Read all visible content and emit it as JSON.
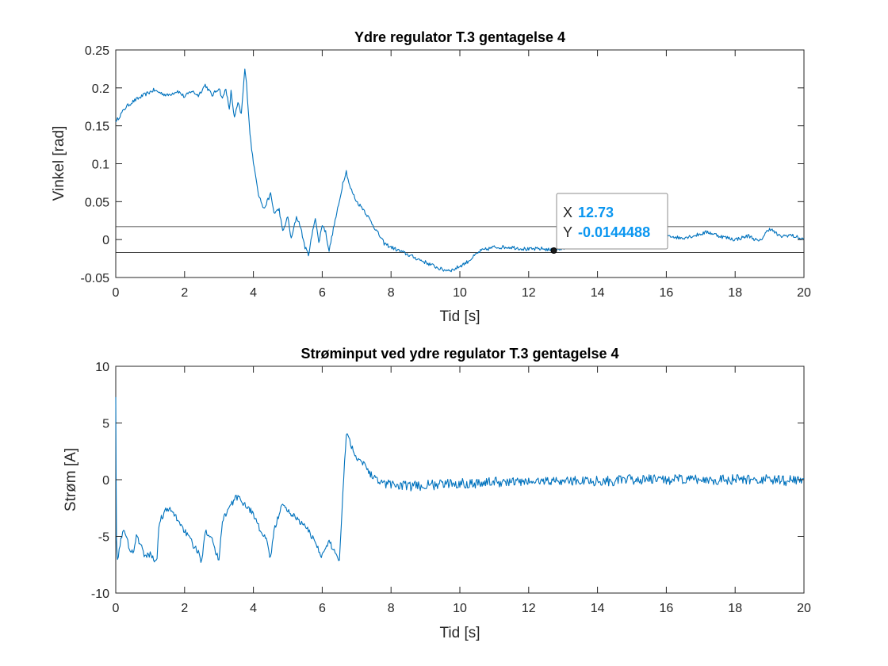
{
  "colors": {
    "series": "#0072BD",
    "datatip_value": "#0A96F0",
    "axes": "#262626"
  },
  "chart_data": [
    {
      "type": "line",
      "title": "Ydre regulator T.3 gentagelse 4",
      "xlabel": "Tid [s]",
      "ylabel": "Vinkel [rad]",
      "xlim": [
        0,
        20
      ],
      "ylim": [
        -0.05,
        0.25
      ],
      "xticks": [
        0,
        2,
        4,
        6,
        8,
        10,
        12,
        14,
        16,
        18,
        20
      ],
      "yticks": [
        -0.05,
        0,
        0.05,
        0.1,
        0.15,
        0.2,
        0.25
      ],
      "xtick_labels": [
        "0",
        "2",
        "4",
        "6",
        "8",
        "10",
        "12",
        "14",
        "16",
        "18",
        "20"
      ],
      "ytick_labels": [
        "-0.05",
        "0",
        "0.05",
        "0.1",
        "0.15",
        "0.2",
        "0.25"
      ],
      "grid": false,
      "reference_lines": [
        0.017,
        -0.017
      ],
      "series": [
        {
          "x": [
            0,
            0.1,
            0.3,
            0.5,
            0.8,
            1.1,
            1.5,
            1.8,
            2.0,
            2.2,
            2.4,
            2.6,
            2.8,
            3.0,
            3.1,
            3.2,
            3.3,
            3.35,
            3.45,
            3.55,
            3.65,
            3.75,
            3.8,
            3.9,
            4.0,
            4.05,
            4.15,
            4.3,
            4.5,
            4.6,
            4.75,
            4.85,
            5.0,
            5.1,
            5.25,
            5.35,
            5.5,
            5.6,
            5.7,
            5.8,
            5.9,
            6.0,
            6.1,
            6.2,
            6.35,
            6.5,
            6.6,
            6.7,
            6.8,
            6.9,
            7.0,
            7.2,
            7.4,
            7.6,
            7.8,
            8.0,
            8.5,
            9.0,
            9.5,
            9.8,
            10.2,
            10.6,
            11.0,
            11.5,
            12.0,
            12.4,
            12.73,
            13.0,
            13.4,
            13.8,
            14.2,
            14.6,
            15.0,
            15.4,
            15.8,
            16.0,
            16.4,
            16.8,
            17.2,
            17.6,
            18.0,
            18.4,
            18.7,
            19.0,
            19.3,
            19.6,
            20.0
          ],
          "y": [
            0.155,
            0.162,
            0.175,
            0.182,
            0.19,
            0.197,
            0.19,
            0.196,
            0.188,
            0.196,
            0.19,
            0.204,
            0.19,
            0.2,
            0.185,
            0.2,
            0.17,
            0.195,
            0.16,
            0.18,
            0.165,
            0.225,
            0.205,
            0.14,
            0.1,
            0.09,
            0.06,
            0.04,
            0.06,
            0.035,
            0.04,
            0.01,
            0.03,
            0.0,
            0.03,
            0.02,
            -0.01,
            -0.02,
            0.005,
            0.03,
            -0.005,
            0.02,
            0.01,
            -0.015,
            0.02,
            0.05,
            0.075,
            0.09,
            0.07,
            0.06,
            0.05,
            0.04,
            0.025,
            0.01,
            -0.005,
            -0.01,
            -0.02,
            -0.03,
            -0.04,
            -0.04,
            -0.03,
            -0.015,
            -0.01,
            -0.01,
            -0.013,
            -0.012,
            -0.0144488,
            -0.012,
            -0.005,
            0.003,
            0.008,
            0.006,
            0.01,
            0.004,
            0.012,
            0.006,
            0.002,
            0.005,
            0.01,
            0.004,
            0.0,
            0.005,
            -0.003,
            0.015,
            0.004,
            0.006,
            0.0
          ]
        }
      ],
      "datatip": {
        "x_label": "X",
        "x_value": "12.73",
        "y_label": "Y",
        "y_value": "-0.0144488",
        "x": 12.73,
        "y": -0.0144488
      }
    },
    {
      "type": "line",
      "title": "Strøminput ved ydre regulator T.3 gentagelse 4",
      "xlabel": "Tid [s]",
      "ylabel": "Strøm [A]",
      "xlim": [
        0,
        20
      ],
      "ylim": [
        -10,
        10
      ],
      "xticks": [
        0,
        2,
        4,
        6,
        8,
        10,
        12,
        14,
        16,
        18,
        20
      ],
      "yticks": [
        -10,
        -5,
        0,
        5,
        10
      ],
      "xtick_labels": [
        "0",
        "2",
        "4",
        "6",
        "8",
        "10",
        "12",
        "14",
        "16",
        "18",
        "20"
      ],
      "ytick_labels": [
        "-10",
        "-5",
        "0",
        "5",
        "10"
      ],
      "grid": false,
      "series": [
        {
          "x": [
            0,
            0.02,
            0.05,
            0.1,
            0.2,
            0.3,
            0.4,
            0.5,
            0.6,
            0.7,
            0.8,
            0.9,
            1.0,
            1.1,
            1.2,
            1.25,
            1.3,
            1.45,
            1.6,
            1.8,
            2.0,
            2.2,
            2.4,
            2.5,
            2.55,
            2.6,
            2.8,
            2.9,
            3.0,
            3.1,
            3.3,
            3.5,
            3.7,
            4.0,
            4.2,
            4.4,
            4.5,
            4.6,
            4.75,
            4.8,
            4.9,
            5.1,
            5.3,
            5.6,
            5.8,
            6.0,
            6.1,
            6.2,
            6.4,
            6.5,
            6.6,
            6.7,
            6.8,
            6.9,
            7.0,
            7.2,
            7.4,
            7.6,
            7.8,
            8.0,
            8.5,
            9.0,
            9.5,
            10.0,
            10.5,
            11.0,
            11.5,
            12.0,
            12.5,
            13.0,
            13.5,
            14.0,
            14.5,
            15.0,
            15.5,
            16.0,
            16.5,
            17.0,
            17.5,
            18.0,
            18.5,
            19.0,
            19.5,
            20.0
          ],
          "y": [
            7.5,
            -5.0,
            -7.3,
            -6.0,
            -4.5,
            -5.0,
            -6.0,
            -6.5,
            -5.0,
            -5.5,
            -6.5,
            -6.8,
            -6.5,
            -7.0,
            -7.2,
            -4.0,
            -3.5,
            -2.7,
            -2.7,
            -3.5,
            -4.5,
            -5.5,
            -6.5,
            -7.2,
            -5.5,
            -4.5,
            -5.0,
            -6.5,
            -7.0,
            -3.5,
            -2.5,
            -1.5,
            -2.0,
            -3.0,
            -4.5,
            -5.5,
            -7.0,
            -4.5,
            -3.0,
            -2.2,
            -2.5,
            -3.0,
            -3.5,
            -4.5,
            -5.5,
            -6.8,
            -6.0,
            -5.5,
            -6.5,
            -7.2,
            -1.0,
            4.1,
            3.5,
            2.5,
            2.0,
            1.5,
            0.5,
            0.0,
            -0.3,
            -0.4,
            -0.6,
            -0.5,
            -0.4,
            -0.3,
            -0.3,
            -0.2,
            -0.2,
            -0.2,
            -0.1,
            -0.1,
            -0.1,
            -0.1,
            -0.1,
            0.0,
            0.0,
            0.0,
            0.0,
            0.0,
            0.0,
            0.0,
            0.0,
            0.0,
            -0.1,
            0.1
          ]
        }
      ]
    }
  ]
}
